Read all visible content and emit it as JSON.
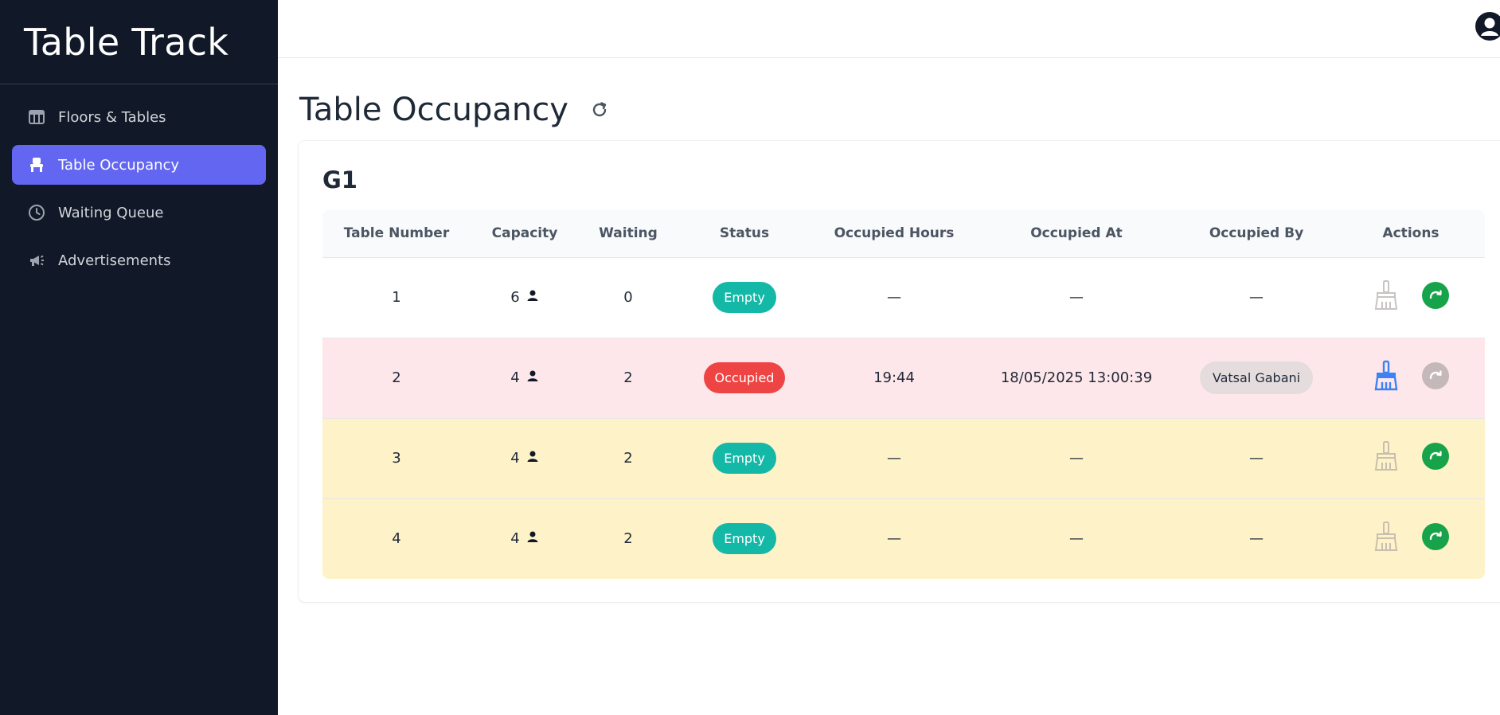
{
  "app": {
    "title": "Table Track"
  },
  "sidebar": {
    "items": [
      {
        "label": "Floors & Tables",
        "icon": "grid-icon",
        "active": false
      },
      {
        "label": "Table Occupancy",
        "icon": "chair-icon",
        "active": true
      },
      {
        "label": "Waiting Queue",
        "icon": "clock-icon",
        "active": false
      },
      {
        "label": "Advertisements",
        "icon": "megaphone-icon",
        "active": false
      }
    ]
  },
  "header": {
    "user_icon": "user-icon"
  },
  "page": {
    "title": "Table Occupancy",
    "refresh_icon": "refresh-icon"
  },
  "floor": {
    "name": "G1",
    "columns": [
      "Table Number",
      "Capacity",
      "Waiting",
      "Status",
      "Occupied Hours",
      "Occupied At",
      "Occupied By",
      "Actions"
    ],
    "rows": [
      {
        "table_number": "1",
        "capacity": "6",
        "waiting": "0",
        "status": "Empty",
        "occupied_hours": "—",
        "occupied_at": "—",
        "occupied_by": "—",
        "row_color": "#ffffff",
        "clean_enabled": false,
        "advance_enabled": true
      },
      {
        "table_number": "2",
        "capacity": "4",
        "waiting": "2",
        "status": "Occupied",
        "occupied_hours": "19:44",
        "occupied_at": "18/05/2025 13:00:39",
        "occupied_by": "Vatsal Gabani",
        "row_color": "#fee7ea",
        "clean_enabled": true,
        "advance_enabled": false
      },
      {
        "table_number": "3",
        "capacity": "4",
        "waiting": "2",
        "status": "Empty",
        "occupied_hours": "—",
        "occupied_at": "—",
        "occupied_by": "—",
        "row_color": "#fef2c8",
        "clean_enabled": false,
        "advance_enabled": true
      },
      {
        "table_number": "4",
        "capacity": "4",
        "waiting": "2",
        "status": "Empty",
        "occupied_hours": "—",
        "occupied_at": "—",
        "occupied_by": "—",
        "row_color": "#fef2c8",
        "clean_enabled": false,
        "advance_enabled": true
      }
    ]
  },
  "colors": {
    "sidebar_bg": "#111827",
    "accent": "#6366f1",
    "empty_badge": "#14b8a6",
    "occupied_badge": "#ef4444",
    "action_green": "#16a34a"
  }
}
